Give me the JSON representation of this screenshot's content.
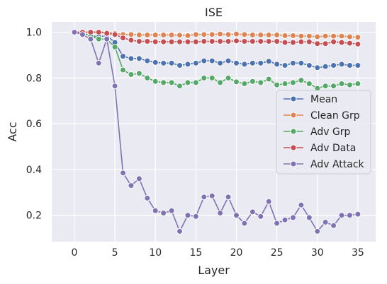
{
  "chart_data": {
    "type": "line",
    "title": "ISE",
    "xlabel": "Layer",
    "ylabel": "Acc",
    "xlim": [
      -2.8,
      37.2
    ],
    "ylim": [
      0.085,
      1.045
    ],
    "xticks": [
      0,
      5,
      10,
      15,
      20,
      25,
      30,
      35
    ],
    "yticks": [
      0.2,
      0.4,
      0.6,
      0.8,
      1.0
    ],
    "ytick_labels": [
      "0.2",
      "0.4",
      "0.6",
      "0.8",
      "1.0"
    ],
    "grid": true,
    "legend_position": "center-right",
    "x": [
      0,
      1,
      2,
      3,
      4,
      5,
      6,
      7,
      8,
      9,
      10,
      11,
      12,
      13,
      14,
      15,
      16,
      17,
      18,
      19,
      20,
      21,
      22,
      23,
      24,
      25,
      26,
      27,
      28,
      29,
      30,
      31,
      32,
      33,
      34,
      35
    ],
    "series": [
      {
        "name": "Mean",
        "color": "#4c72b0",
        "values": [
          1.0,
          0.995,
          0.985,
          0.98,
          0.985,
          0.955,
          0.895,
          0.885,
          0.885,
          0.875,
          0.868,
          0.865,
          0.865,
          0.855,
          0.86,
          0.865,
          0.875,
          0.875,
          0.865,
          0.875,
          0.865,
          0.86,
          0.865,
          0.865,
          0.873,
          0.86,
          0.855,
          0.865,
          0.865,
          0.855,
          0.845,
          0.85,
          0.855,
          0.86,
          0.855,
          0.855
        ]
      },
      {
        "name": "Clean Grp",
        "color": "#dd8452",
        "values": [
          1.0,
          1.0,
          1.0,
          1.0,
          1.0,
          0.995,
          0.99,
          0.99,
          0.988,
          0.988,
          0.988,
          0.988,
          0.988,
          0.987,
          0.985,
          0.99,
          0.99,
          0.99,
          0.992,
          0.99,
          0.992,
          0.99,
          0.988,
          0.988,
          0.988,
          0.988,
          0.985,
          0.985,
          0.983,
          0.983,
          0.98,
          0.983,
          0.983,
          0.983,
          0.98,
          0.978
        ]
      },
      {
        "name": "Adv Grp",
        "color": "#55a868",
        "values": [
          1.0,
          0.995,
          0.985,
          0.97,
          0.97,
          0.935,
          0.835,
          0.815,
          0.82,
          0.8,
          0.785,
          0.78,
          0.78,
          0.765,
          0.78,
          0.78,
          0.8,
          0.8,
          0.78,
          0.8,
          0.783,
          0.775,
          0.785,
          0.78,
          0.795,
          0.77,
          0.775,
          0.78,
          0.79,
          0.775,
          0.755,
          0.765,
          0.765,
          0.775,
          0.77,
          0.775
        ]
      },
      {
        "name": "Adv Data",
        "color": "#c44e52",
        "values": [
          1.0,
          1.0,
          1.0,
          1.0,
          0.995,
          0.99,
          0.975,
          0.965,
          0.96,
          0.96,
          0.958,
          0.958,
          0.958,
          0.958,
          0.958,
          0.958,
          0.96,
          0.96,
          0.96,
          0.96,
          0.962,
          0.96,
          0.96,
          0.96,
          0.96,
          0.96,
          0.955,
          0.955,
          0.958,
          0.958,
          0.95,
          0.95,
          0.958,
          0.955,
          0.952,
          0.948
        ]
      },
      {
        "name": "Adv Attack",
        "color": "#8172b3",
        "values": [
          1.0,
          0.99,
          0.97,
          0.865,
          0.97,
          0.765,
          0.385,
          0.33,
          0.36,
          0.275,
          0.22,
          0.21,
          0.22,
          0.13,
          0.2,
          0.195,
          0.28,
          0.285,
          0.21,
          0.28,
          0.2,
          0.165,
          0.215,
          0.195,
          0.26,
          0.165,
          0.18,
          0.19,
          0.245,
          0.19,
          0.13,
          0.17,
          0.155,
          0.2,
          0.2,
          0.205
        ]
      }
    ]
  }
}
